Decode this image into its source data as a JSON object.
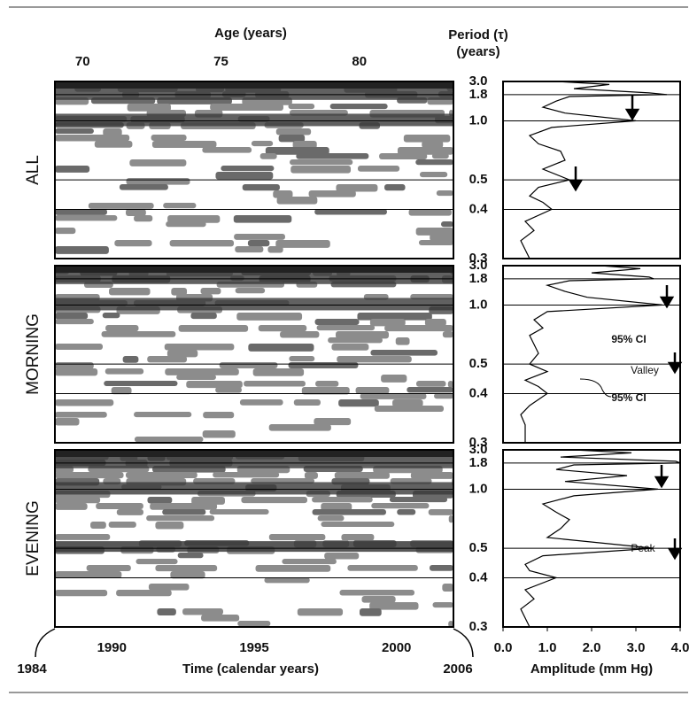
{
  "chart_data": {
    "type": "periodogram",
    "age_label": "Age (years)",
    "age_lim": [
      69,
      83.4
    ],
    "age_ticks": [
      70,
      75,
      80
    ],
    "period_label": "Period (τ)",
    "period_unit": "(years)",
    "ylim": [
      3.0,
      0.3
    ],
    "y_scale": "reciprocal",
    "yticks": [
      {
        "value": 3.0,
        "label": "3.0"
      },
      {
        "value": 1.8,
        "label": "1.8"
      },
      {
        "value": 1.0,
        "label": "1.0"
      },
      {
        "value": 0.5,
        "label": "0.5"
      },
      {
        "value": 0.4,
        "label": "0.4"
      },
      {
        "value": 0.3,
        "label": "0.3"
      }
    ],
    "xlim": [
      1988,
      2002
    ],
    "xticks": [
      1990,
      1995,
      2000
    ],
    "time_start": "1984",
    "time_end": "2006",
    "x_label": "Time (calendar years)",
    "amplitude_xlim": [
      0,
      4
    ],
    "amplitude_xticks": [
      {
        "value": 0,
        "label": "0.0"
      },
      {
        "value": 1,
        "label": "1.0"
      },
      {
        "value": 2,
        "label": "2.0"
      },
      {
        "value": 3,
        "label": "3.0"
      },
      {
        "value": 4,
        "label": "4.0"
      }
    ],
    "amplitude_label": "Amplitude (mm Hg)",
    "periods": [
      3.0,
      2.6,
      2.2,
      1.9,
      1.8,
      1.7,
      1.5,
      1.3,
      1.15,
      1.0,
      0.9,
      0.8,
      0.72,
      0.66,
      0.6,
      0.55,
      0.5,
      0.47,
      0.44,
      0.42,
      0.4,
      0.37,
      0.35,
      0.33,
      0.3
    ],
    "panels": [
      {
        "name": "ALL",
        "color": "#000000",
        "values": [
          1.2,
          2.4,
          1.6,
          3.3,
          3.7,
          1.5,
          1.2,
          0.9,
          1.4,
          3.0,
          1.1,
          0.6,
          0.8,
          1.3,
          1.4,
          0.9,
          1.5,
          0.8,
          0.6,
          0.9,
          1.1,
          0.5,
          0.7,
          0.4,
          0.6
        ]
      },
      {
        "name": "MORNING",
        "color": "#000000",
        "values": [
          2.2,
          3.1,
          2.0,
          3.3,
          3.4,
          1.5,
          1.0,
          1.4,
          1.9,
          3.6,
          1.0,
          0.7,
          0.9,
          0.6,
          0.7,
          0.8,
          0.6,
          1.0,
          0.5,
          0.8,
          1.0,
          0.6,
          0.4,
          0.5,
          0.5
        ]
      },
      {
        "name": "EVENING",
        "color": "#000000",
        "values": [
          1.6,
          2.9,
          1.3,
          3.9,
          4.0,
          1.6,
          1.2,
          2.8,
          1.4,
          3.5,
          1.6,
          0.9,
          1.2,
          1.5,
          1.3,
          1.0,
          3.4,
          0.9,
          0.5,
          0.6,
          1.2,
          0.5,
          0.7,
          0.4,
          0.6
        ]
      }
    ],
    "annotations": [
      "95% CI",
      "Valley",
      "95% CI",
      "Peak"
    ]
  }
}
